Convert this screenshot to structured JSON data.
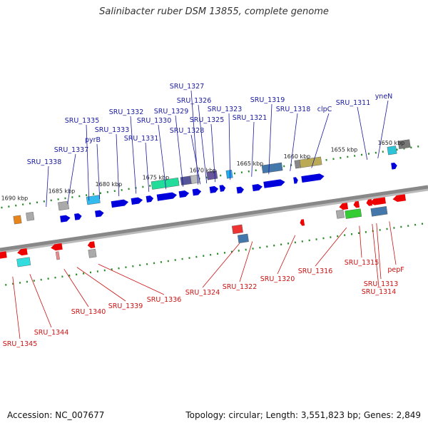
{
  "title": "Salinibacter ruber DSM 13855, complete genome",
  "footer": {
    "accession": "Accession: NC_007677",
    "summary": "Topology: circular; Length: 3,551,823 bp; Genes: 2,849"
  },
  "colors": {
    "forward_label": "#1a1aa0",
    "reverse_label": "#cc1111",
    "forward_gene": "#0000dd",
    "reverse_gene": "#ee0000",
    "backbone": "#888888",
    "tick": "#2a8a2a"
  },
  "ticks": [
    {
      "label": "1690 kbp",
      "pos": 0.05
    },
    {
      "label": "1685 kbp",
      "pos": 0.16
    },
    {
      "label": "1680 kbp",
      "pos": 0.27
    },
    {
      "label": "1675 kbp",
      "pos": 0.38
    },
    {
      "label": "1670 kbp",
      "pos": 0.49
    },
    {
      "label": "1665 kbp",
      "pos": 0.6
    },
    {
      "label": "1660 kbp",
      "pos": 0.71
    },
    {
      "label": "1655 kbp",
      "pos": 0.82
    },
    {
      "label": "1650 kbp",
      "pos": 0.93
    }
  ],
  "genes_forward": [
    {
      "label": "SRU_1338",
      "pos": 0.12
    },
    {
      "label": "SRU_1337",
      "pos": 0.17
    },
    {
      "label": "SRU_1335",
      "pos": 0.22
    },
    {
      "label": "pyrB",
      "pos": 0.245
    },
    {
      "label": "SRU_1333",
      "pos": 0.29
    },
    {
      "label": "SRU_1332",
      "pos": 0.33
    },
    {
      "label": "SRU_1331",
      "pos": 0.36
    },
    {
      "label": "SRU_1330",
      "pos": 0.4
    },
    {
      "label": "SRU_1329",
      "pos": 0.44
    },
    {
      "label": "SRU_1328",
      "pos": 0.48
    },
    {
      "label": "SRU_1327",
      "pos": 0.475
    },
    {
      "label": "SRU_1326",
      "pos": 0.495
    },
    {
      "label": "SRU_1325",
      "pos": 0.515
    },
    {
      "label": "SRU_1323",
      "pos": 0.55
    },
    {
      "label": "SRU_1321",
      "pos": 0.6
    },
    {
      "label": "SRU_1319",
      "pos": 0.64
    },
    {
      "label": "SRU_1318",
      "pos": 0.69
    },
    {
      "label": "clpC",
      "pos": 0.74
    },
    {
      "label": "SRU_1311",
      "pos": 0.87
    },
    {
      "label": "yneN",
      "pos": 0.895
    }
  ],
  "genes_reverse": [
    {
      "label": "SRU_1345",
      "pos": 0.02
    },
    {
      "label": "SRU_1344",
      "pos": 0.06
    },
    {
      "label": "SRU_1340",
      "pos": 0.14
    },
    {
      "label": "SRU_1339",
      "pos": 0.17
    },
    {
      "label": "SRU_1336",
      "pos": 0.22
    },
    {
      "label": "SRU_1324",
      "pos": 0.55
    },
    {
      "label": "SRU_1322",
      "pos": 0.58
    },
    {
      "label": "SRU_1320",
      "pos": 0.68
    },
    {
      "label": "SRU_1316",
      "pos": 0.8
    },
    {
      "label": "SRU_1315",
      "pos": 0.83
    },
    {
      "label": "SRU_1314",
      "pos": 0.86
    },
    {
      "label": "SRU_1313",
      "pos": 0.87
    },
    {
      "label": "pepF",
      "pos": 0.9
    }
  ]
}
